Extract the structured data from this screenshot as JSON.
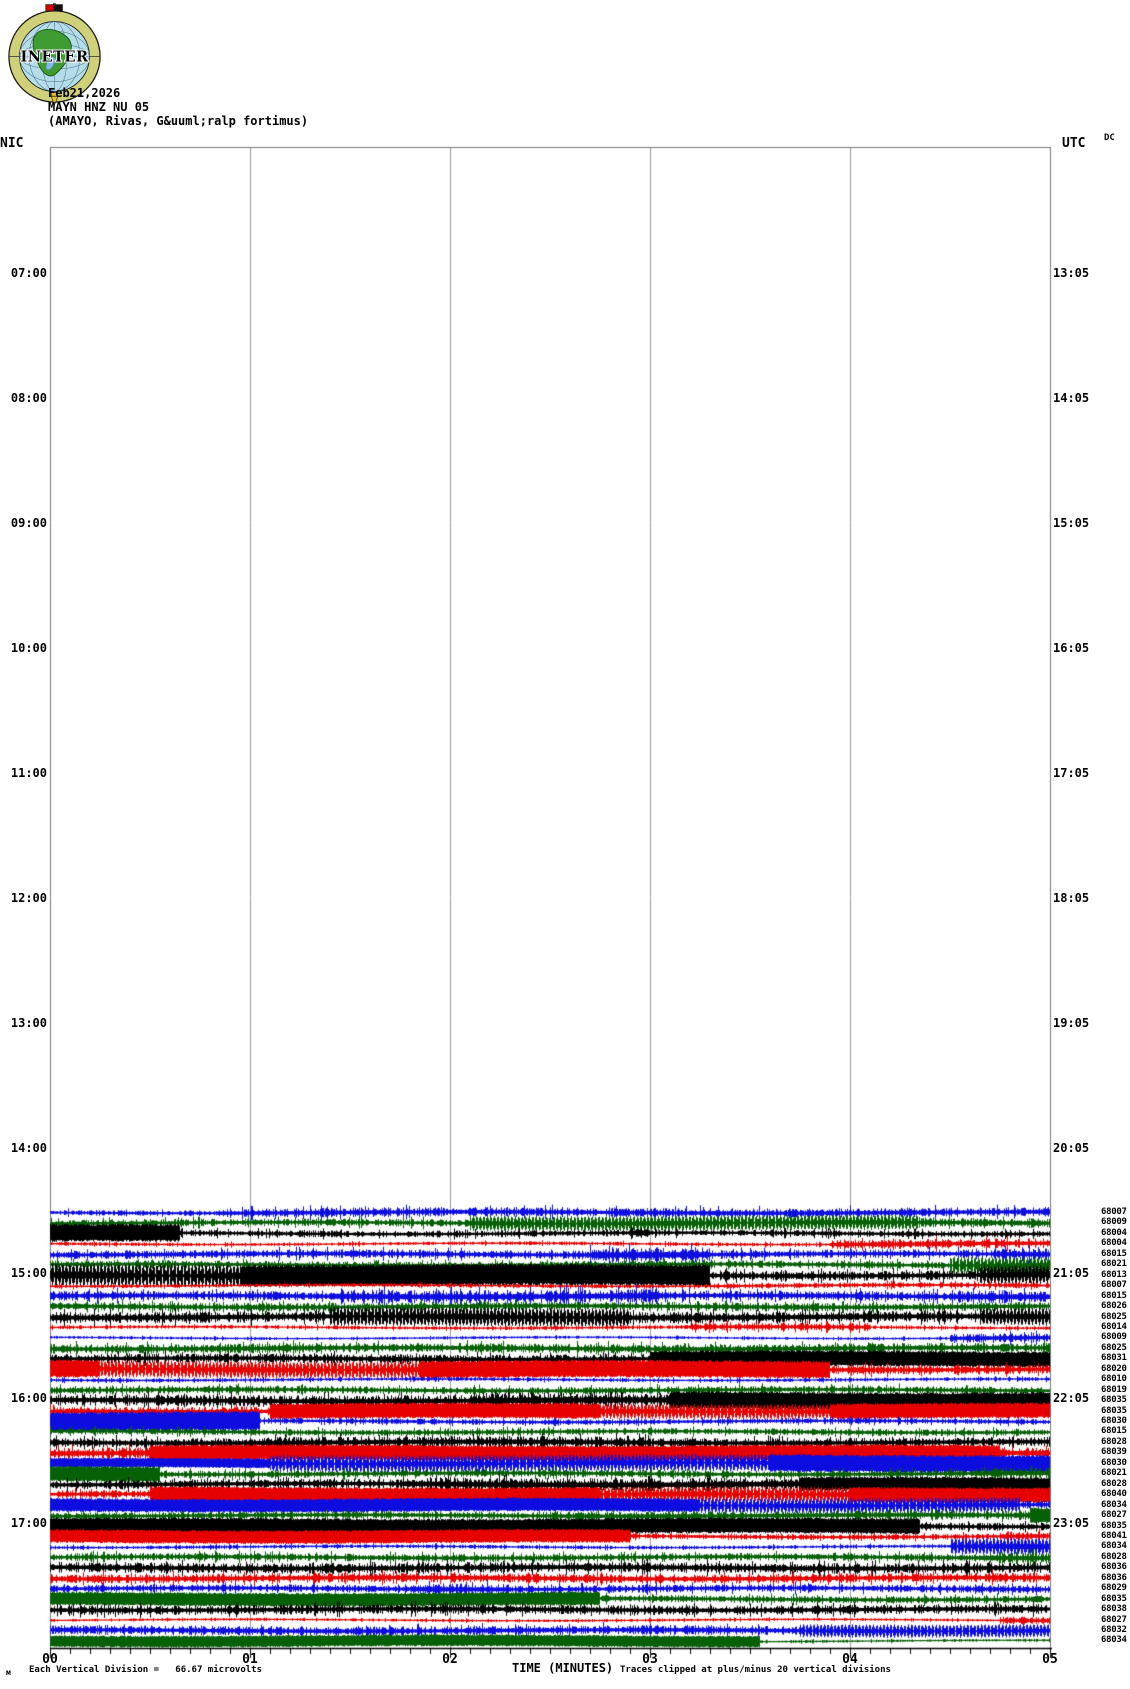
{
  "header": {
    "logo_text": "INETER",
    "date": "Feb21,2026",
    "station_line": "MAYN HNZ NU 05",
    "location_line": "(AMAYO, Rivas, G&uuml;ralp fortimus)"
  },
  "chart_data": {
    "type": "line",
    "subtype": "helicorder-seismogram",
    "x_axis": {
      "label": "TIME (MINUTES)",
      "ticks": [
        "00",
        "01",
        "02",
        "03",
        "04",
        "05"
      ],
      "range_minutes": [
        0,
        5
      ]
    },
    "y_axis_left": {
      "label": "NIC",
      "ticks": [
        "07:00",
        "08:00",
        "09:00",
        "10:00",
        "11:00",
        "12:00",
        "13:00",
        "14:00",
        "15:00",
        "16:00",
        "17:00"
      ]
    },
    "y_axis_right": {
      "label": "UTC",
      "sublabel": "DC",
      "ticks": [
        "13:05",
        "14:05",
        "15:05",
        "16:05",
        "17:05",
        "18:05",
        "19:05",
        "20:05",
        "21:05",
        "22:05",
        "23:05"
      ]
    },
    "minutes_per_line": 5,
    "first_trace_local_time": "14:30",
    "trace_colors": {
      "blue": "#0d0de0",
      "green": "#066006",
      "black": "#000000",
      "red": "#e60000"
    },
    "color_cycle": [
      "blue",
      "green",
      "black",
      "red"
    ],
    "rows": [
      {
        "label": "68007",
        "color": "blue",
        "base": 4,
        "bursts": [
          [
            0,
            0.85,
            3,
            "n"
          ],
          [
            0.85,
            5,
            5,
            "n"
          ]
        ]
      },
      {
        "label": "68009",
        "color": "green",
        "base": 4,
        "bursts": [
          [
            2.1,
            4.35,
            8,
            "o"
          ],
          [
            4.35,
            5,
            5,
            "n"
          ]
        ]
      },
      {
        "label": "68004",
        "color": "black",
        "base": 3.5,
        "bursts": [
          [
            0,
            0.65,
            9,
            "s"
          ],
          [
            2.9,
            3.0,
            7,
            "n"
          ]
        ]
      },
      {
        "label": "68004",
        "color": "red",
        "base": 2,
        "bursts": [
          [
            3.9,
            5,
            5,
            "n"
          ]
        ]
      },
      {
        "label": "68015",
        "color": "blue",
        "base": 4.5,
        "bursts": [
          [
            2.7,
            3.3,
            8,
            "n"
          ],
          [
            4.75,
            5,
            6,
            "n"
          ]
        ]
      },
      {
        "label": "68021",
        "color": "green",
        "base": 4,
        "bursts": [
          [
            4.5,
            5,
            9,
            "o"
          ]
        ]
      },
      {
        "label": "68013",
        "color": "black",
        "base": 5,
        "bursts": [
          [
            0,
            0.95,
            12,
            "o"
          ],
          [
            0.95,
            3.3,
            11,
            "s"
          ],
          [
            4.65,
            5,
            10,
            "o"
          ]
        ]
      },
      {
        "label": "68007",
        "color": "red",
        "base": 2,
        "bursts": [
          [
            3.3,
            5,
            3,
            "n"
          ]
        ]
      },
      {
        "label": "68015",
        "color": "blue",
        "base": 5,
        "bursts": [
          [
            1.4,
            3.05,
            7,
            "n"
          ],
          [
            4.5,
            5,
            7,
            "n"
          ]
        ]
      },
      {
        "label": "68026",
        "color": "green",
        "base": 4.5,
        "bursts": []
      },
      {
        "label": "68025",
        "color": "black",
        "base": 6,
        "bursts": [
          [
            1.4,
            2.9,
            10,
            "o"
          ],
          [
            4.65,
            5,
            9,
            "o"
          ]
        ]
      },
      {
        "label": "68014",
        "color": "red",
        "base": 2,
        "bursts": [
          [
            3.2,
            4.1,
            4,
            "n"
          ]
        ]
      },
      {
        "label": "68009",
        "color": "blue",
        "base": 1.5,
        "bursts": [
          [
            4.5,
            5,
            5,
            "n"
          ]
        ]
      },
      {
        "label": "68025",
        "color": "green",
        "base": 5,
        "bursts": []
      },
      {
        "label": "68031",
        "color": "black",
        "base": 5,
        "bursts": [
          [
            3,
            5,
            8,
            "s"
          ]
        ]
      },
      {
        "label": "68020",
        "color": "red",
        "base": 5,
        "bursts": [
          [
            0,
            0.25,
            9,
            "s"
          ],
          [
            0.25,
            1.85,
            9,
            "o"
          ],
          [
            1.85,
            3.9,
            9,
            "s"
          ]
        ]
      },
      {
        "label": "68010",
        "color": "blue",
        "base": 2,
        "bursts": []
      },
      {
        "label": "68019",
        "color": "green",
        "base": 4,
        "bursts": []
      },
      {
        "label": "68035",
        "color": "black",
        "base": 6,
        "bursts": [
          [
            2.1,
            3.1,
            8,
            "n"
          ],
          [
            3.1,
            5,
            9,
            "s"
          ]
        ]
      },
      {
        "label": "68035",
        "color": "red",
        "base": 5,
        "bursts": [
          [
            1.1,
            2.75,
            8,
            "s"
          ],
          [
            2.75,
            3.9,
            8,
            "o"
          ],
          [
            3.9,
            5,
            8,
            "s"
          ]
        ]
      },
      {
        "label": "68030",
        "color": "blue",
        "base": 3,
        "bursts": [
          [
            0,
            1.05,
            10,
            "s"
          ]
        ]
      },
      {
        "label": "68015",
        "color": "green",
        "base": 3.5,
        "bursts": []
      },
      {
        "label": "68028",
        "color": "black",
        "base": 5,
        "bursts": [
          [
            1,
            3,
            6,
            "n"
          ]
        ]
      },
      {
        "label": "68039",
        "color": "red",
        "base": 6,
        "bursts": [
          [
            0.5,
            4.75,
            8,
            "s"
          ]
        ]
      },
      {
        "label": "68030",
        "color": "blue",
        "base": 4,
        "bursts": [
          [
            0,
            1.1,
            5,
            "s"
          ],
          [
            1.1,
            3.6,
            9,
            "o"
          ],
          [
            3.6,
            5,
            9,
            "s"
          ]
        ]
      },
      {
        "label": "68021",
        "color": "green",
        "base": 4,
        "bursts": [
          [
            0,
            0.55,
            8,
            "s"
          ],
          [
            4.6,
            5,
            6,
            "n"
          ]
        ]
      },
      {
        "label": "68028",
        "color": "black",
        "base": 5,
        "bursts": [
          [
            1.75,
            3.75,
            7,
            "n"
          ],
          [
            3.75,
            5,
            7,
            "s"
          ]
        ]
      },
      {
        "label": "68040",
        "color": "red",
        "base": 4,
        "bursts": [
          [
            0.5,
            2.75,
            8,
            "s"
          ],
          [
            2.75,
            4,
            8,
            "o"
          ],
          [
            4,
            5,
            8,
            "s"
          ]
        ]
      },
      {
        "label": "68034",
        "color": "blue",
        "base": 4,
        "bursts": [
          [
            0,
            3.25,
            7,
            "s"
          ],
          [
            3.25,
            4.85,
            8,
            "o"
          ]
        ]
      },
      {
        "label": "68027",
        "color": "green",
        "base": 4,
        "bursts": [
          [
            2.5,
            4.9,
            5,
            "n"
          ],
          [
            4.9,
            5,
            8,
            "s"
          ]
        ]
      },
      {
        "label": "68035",
        "color": "black",
        "base": 4,
        "bursts": [
          [
            0,
            4.35,
            8,
            "s"
          ]
        ]
      },
      {
        "label": "68041",
        "color": "red",
        "base": 3,
        "bursts": [
          [
            0,
            2.9,
            7,
            "s"
          ],
          [
            4.75,
            5,
            5,
            "n"
          ]
        ]
      },
      {
        "label": "68034",
        "color": "blue",
        "base": 2,
        "bursts": [
          [
            4.5,
            5,
            9,
            "o"
          ]
        ]
      },
      {
        "label": "68028",
        "color": "green",
        "base": 4,
        "bursts": [
          [
            4.65,
            5,
            6,
            "n"
          ]
        ]
      },
      {
        "label": "68036",
        "color": "black",
        "base": 5.5,
        "bursts": []
      },
      {
        "label": "68036",
        "color": "red",
        "base": 5,
        "bursts": []
      },
      {
        "label": "68029",
        "color": "blue",
        "base": 4,
        "bursts": [
          [
            1.8,
            2.3,
            6,
            "n"
          ]
        ]
      },
      {
        "label": "68035",
        "color": "green",
        "base": 4,
        "bursts": [
          [
            0,
            2.75,
            7,
            "s"
          ]
        ]
      },
      {
        "label": "68038",
        "color": "black",
        "base": 5,
        "bursts": []
      },
      {
        "label": "68027",
        "color": "red",
        "base": 1.5,
        "bursts": [
          [
            4.75,
            5,
            4,
            "n"
          ]
        ]
      },
      {
        "label": "68032",
        "color": "blue",
        "base": 5,
        "bursts": [
          [
            3.75,
            5,
            7,
            "o"
          ]
        ]
      },
      {
        "label": "68034",
        "color": "green",
        "base": 1.5,
        "bursts": [
          [
            0,
            3.55,
            6,
            "s"
          ]
        ]
      }
    ]
  },
  "footer": {
    "unit_mark": "м",
    "scale_note": "Each Vertical Division =   66.67 microvolts",
    "clip_note": "Traces clipped at plus/minus 20 vertical divisions"
  }
}
